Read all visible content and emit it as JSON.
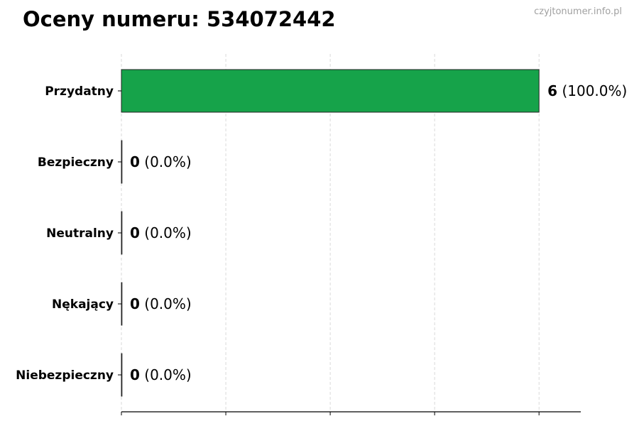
{
  "title": "Oceny numeru: 534072442",
  "watermark": "czyjtonumer.info.pl",
  "chart_data": {
    "type": "bar",
    "orientation": "horizontal",
    "title": "Oceny numeru: 534072442",
    "categories": [
      "Przydatny",
      "Bezpieczny",
      "Neutralny",
      "Nękający",
      "Niebezpieczny"
    ],
    "values": [
      6,
      0,
      0,
      0,
      0
    ],
    "percent_labels": [
      "(100.0%)",
      "(0.0%)",
      "(0.0%)",
      "(0.0%)",
      "(0.0%)"
    ],
    "xlim": [
      0,
      6.6
    ],
    "xticks": [
      0,
      1.5,
      3,
      4.5,
      6
    ],
    "xtick_labels_shown": false,
    "grid": "x dashed",
    "colors": {
      "bar": "#16a34a",
      "edge": "#222222",
      "grid": "#d0d0d0"
    }
  }
}
